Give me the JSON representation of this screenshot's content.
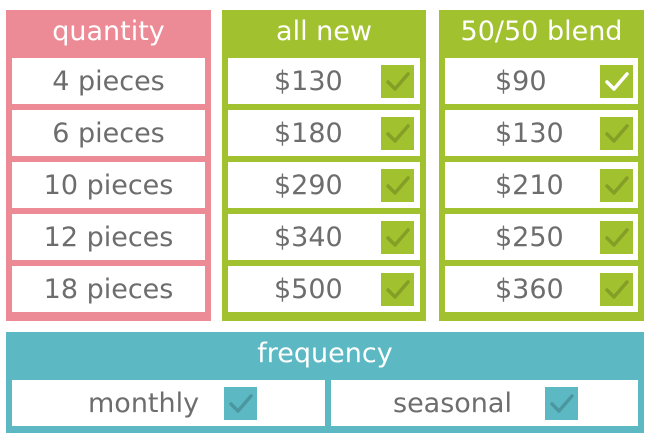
{
  "quantity": {
    "header": "quantity",
    "rows": [
      "4 pieces",
      "6 pieces",
      "10 pieces",
      "12 pieces",
      "18 pieces"
    ]
  },
  "all_new": {
    "header": "all new",
    "rows": [
      "$130",
      "$180",
      "$290",
      "$340",
      "$500"
    ],
    "checked_row": null
  },
  "blend": {
    "header": "50/50 blend",
    "rows": [
      "$90",
      "$130",
      "$210",
      "$250",
      "$360"
    ],
    "checked_row": 0
  },
  "frequency": {
    "header": "frequency",
    "options": [
      "monthly",
      "seasonal"
    ]
  },
  "colors": {
    "pink": "#ec8a95",
    "green": "#a2c12f",
    "teal": "#5cb9c4",
    "text": "#6d6d6d"
  },
  "icons": {
    "checkbox": "checkmark-icon"
  }
}
